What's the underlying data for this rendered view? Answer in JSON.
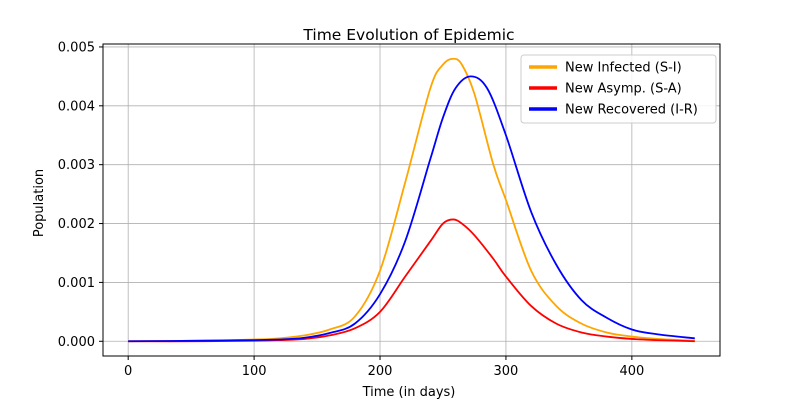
{
  "chart_data": {
    "type": "line",
    "title": "Time Evolution of Epidemic",
    "xlabel": "Time (in days)",
    "ylabel": "Population",
    "xlim": [
      -20,
      470
    ],
    "ylim": [
      -0.00025,
      0.00505
    ],
    "xticks": [
      0,
      100,
      200,
      300,
      400
    ],
    "xtick_labels": [
      "0",
      "100",
      "200",
      "300",
      "400"
    ],
    "yticks": [
      0.0,
      0.001,
      0.002,
      0.003,
      0.004,
      0.005
    ],
    "ytick_labels": [
      "0.000",
      "0.001",
      "0.002",
      "0.003",
      "0.004",
      "0.005"
    ],
    "grid": true,
    "legend_position": "top-right",
    "series": [
      {
        "name": "New Infected (S-I)",
        "color": "#ffa500",
        "x": [
          0,
          60,
          100,
          120,
          140,
          160,
          180,
          200,
          220,
          240,
          250,
          258,
          265,
          275,
          290,
          300,
          320,
          340,
          360,
          380,
          400,
          420,
          450
        ],
        "y": [
          0.0,
          1e-05,
          3e-05,
          5e-05,
          0.0001,
          0.0002,
          0.00042,
          0.0012,
          0.0027,
          0.0043,
          0.0047,
          0.0048,
          0.0047,
          0.0042,
          0.003,
          0.0024,
          0.0012,
          0.0006,
          0.0003,
          0.00015,
          8e-05,
          4e-05,
          1e-05
        ]
      },
      {
        "name": "New Asymp. (S-A)",
        "color": "#ff0000",
        "x": [
          0,
          60,
          100,
          120,
          140,
          160,
          180,
          200,
          220,
          240,
          250,
          258,
          265,
          275,
          290,
          300,
          320,
          340,
          360,
          380,
          400,
          420,
          450
        ],
        "y": [
          0.0,
          0.0,
          1e-05,
          2e-05,
          4e-05,
          0.0001,
          0.00022,
          0.0005,
          0.0011,
          0.0017,
          0.002,
          0.00207,
          0.002,
          0.0018,
          0.0014,
          0.0011,
          0.0006,
          0.0003,
          0.00015,
          8e-05,
          4e-05,
          2e-05,
          0.0
        ]
      },
      {
        "name": "New Recovered (I-R)",
        "color": "#0000ff",
        "x": [
          0,
          60,
          100,
          120,
          140,
          160,
          180,
          200,
          220,
          240,
          250,
          260,
          272,
          285,
          300,
          320,
          340,
          360,
          380,
          400,
          420,
          450
        ],
        "y": [
          0.0,
          1e-05,
          2e-05,
          3e-05,
          6e-05,
          0.00014,
          0.0003,
          0.0008,
          0.0017,
          0.0031,
          0.0038,
          0.0043,
          0.0045,
          0.0043,
          0.0035,
          0.0022,
          0.0013,
          0.0007,
          0.0004,
          0.0002,
          0.00012,
          5e-05
        ]
      }
    ]
  }
}
